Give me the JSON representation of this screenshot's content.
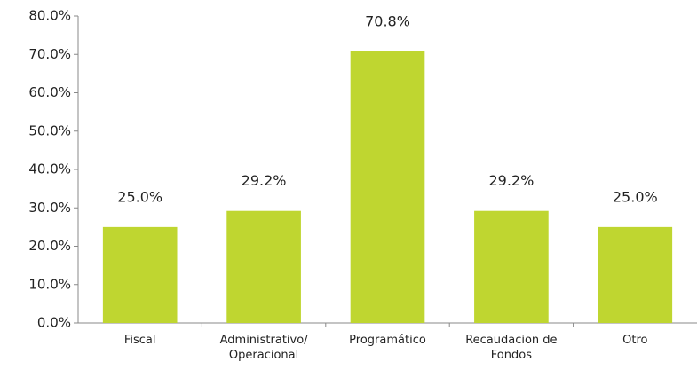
{
  "chart_data": {
    "type": "bar",
    "categories": [
      "Fiscal",
      "Administrativo/ Operacional",
      "Programático",
      "Recaudacion de Fondos",
      "Otro"
    ],
    "values": [
      25.0,
      29.2,
      70.8,
      29.2,
      25.0
    ],
    "value_labels": [
      "25.0%",
      "29.2%",
      "70.8%",
      "29.2%",
      "25.0%"
    ],
    "color": "#bfd630",
    "ylim": [
      0,
      80
    ],
    "yticks": [
      {
        "value": 0,
        "label": "0.0%"
      },
      {
        "value": 10,
        "label": "10.0%"
      },
      {
        "value": 20,
        "label": "20.0%"
      },
      {
        "value": 30,
        "label": "30.0%"
      },
      {
        "value": 40,
        "label": "40.0%"
      },
      {
        "value": 50,
        "label": "50.0%"
      },
      {
        "value": 60,
        "label": "60.0%"
      },
      {
        "value": 70,
        "label": "70.0%"
      },
      {
        "value": 80,
        "label": "80.0%"
      }
    ],
    "grid": false
  }
}
